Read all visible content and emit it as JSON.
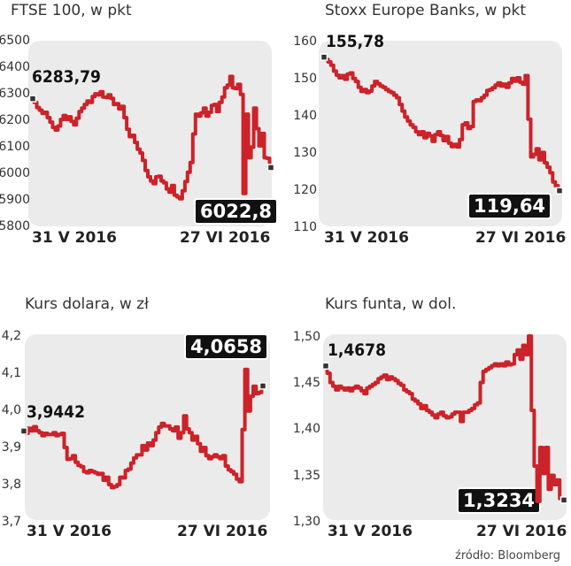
{
  "source": "źródło: Bloomberg",
  "colors": {
    "line": "#cc2229",
    "plot_bg": "#ebebeb",
    "label_bg": "#111111"
  },
  "chart_data": [
    {
      "type": "line",
      "title": "FTSE 100, w pkt",
      "x_start_label": "31 V 2016",
      "x_end_label": "27 VI 2016",
      "ylim": [
        5800,
        6500
      ],
      "yticks": [
        "6500",
        "6400",
        "6300",
        "6200",
        "6100",
        "6000",
        "5900",
        "5800"
      ],
      "start_value_label": "6283,79",
      "end_value_label": "6022,8",
      "series": [
        {
          "values": [
            6283.79,
            6270,
            6250,
            6240,
            6228,
            6232,
            6212,
            6195,
            6175,
            6165,
            6180,
            6205,
            6220,
            6205,
            6215,
            6198,
            6185,
            6210,
            6235,
            6248,
            6262,
            6275,
            6270,
            6292,
            6302,
            6298,
            6310,
            6290,
            6288,
            6298,
            6285,
            6262,
            6265,
            6245,
            6255,
            6212,
            6168,
            6140,
            6145,
            6118,
            6092,
            6078,
            6050,
            6012,
            5988,
            5972,
            5962,
            5988,
            5990,
            5972,
            5965,
            5942,
            5930,
            5955,
            5918,
            5912,
            5905,
            5935,
            5970,
            6005,
            6042,
            6150,
            6225,
            6218,
            6230,
            6248,
            6218,
            6232,
            6258,
            6262,
            6235,
            6270,
            6290,
            6325,
            6335,
            6368,
            6325,
            6322,
            6338,
            6300,
            5925,
            6225,
            6060,
            6100,
            6248,
            6170,
            6105,
            6152,
            6060,
            6058,
            6022.8
          ]
        }
      ]
    },
    {
      "type": "line",
      "title": "Stoxx Europe Banks, w pkt",
      "x_start_label": "31 V 2016",
      "x_end_label": "27 VI 2016",
      "ylim": [
        110,
        160
      ],
      "yticks": [
        "160",
        "150",
        "140",
        "130",
        "120",
        "110"
      ],
      "start_value_label": "155,78",
      "end_value_label": "119,64",
      "series": [
        {
          "values": [
            155.78,
            155.2,
            154.5,
            153.6,
            152.0,
            150.9,
            150.2,
            150.8,
            149.8,
            151.2,
            151.5,
            150.0,
            149.2,
            147.6,
            146.5,
            147.0,
            146.2,
            146.6,
            148.0,
            149.2,
            148.6,
            148.0,
            147.6,
            147.0,
            146.5,
            146.2,
            145.5,
            144.8,
            143.0,
            141.2,
            139.6,
            138.5,
            137.5,
            136.8,
            135.6,
            134.8,
            135.6,
            134.0,
            135.2,
            134.5,
            133.0,
            134.8,
            135.6,
            134.6,
            133.2,
            134.3,
            132.5,
            131.6,
            132.2,
            131.5,
            133.5,
            137.5,
            138.0,
            136.5,
            137.0,
            143.8,
            144.2,
            144.0,
            144.8,
            145.5,
            146.8,
            147.0,
            147.5,
            148.2,
            148.8,
            148.0,
            148.5,
            147.6,
            148.8,
            150.0,
            149.3,
            150.2,
            149.0,
            148.5,
            150.8,
            139.0,
            128.8,
            129.5,
            131.0,
            128.0,
            130.0,
            127.2,
            126.0,
            124.5,
            122.0,
            121.0,
            119.64
          ]
        }
      ]
    },
    {
      "type": "line",
      "title": "Kurs dolara, w zł",
      "x_start_label": "31 V 2016",
      "x_end_label": "27 VI 2016",
      "ylim": [
        3.7,
        4.2
      ],
      "yticks": [
        "4,2",
        "4,1",
        "4,0",
        "3,9",
        "3,8",
        "3,7"
      ],
      "start_value_label": "3,9442",
      "end_value_label": "4,0658",
      "series": [
        {
          "values": [
            3.9442,
            3.938,
            3.952,
            3.945,
            3.956,
            3.945,
            3.94,
            3.932,
            3.938,
            3.935,
            3.935,
            3.94,
            3.932,
            3.935,
            3.938,
            3.9,
            3.868,
            3.87,
            3.878,
            3.86,
            3.852,
            3.848,
            3.835,
            3.832,
            3.838,
            3.835,
            3.832,
            3.828,
            3.83,
            3.812,
            3.82,
            3.8,
            3.792,
            3.795,
            3.8,
            3.82,
            3.818,
            3.838,
            3.842,
            3.858,
            3.872,
            3.88,
            3.88,
            3.905,
            3.893,
            3.912,
            3.905,
            3.92,
            3.94,
            3.955,
            3.965,
            3.958,
            3.958,
            3.95,
            3.945,
            3.955,
            3.925,
            3.94,
            3.985,
            3.95,
            3.94,
            3.92,
            3.93,
            3.91,
            3.89,
            3.9,
            3.878,
            3.87,
            3.875,
            3.88,
            3.875,
            3.87,
            3.878,
            3.85,
            3.84,
            3.835,
            3.828,
            3.815,
            3.808,
            3.948,
            4.11,
            3.998,
            4.038,
            4.065,
            4.045,
            4.048,
            4.0658
          ]
        }
      ]
    },
    {
      "type": "line",
      "title": "Kurs funta, w dol.",
      "x_start_label": "31 V 2016",
      "x_end_label": "27 VI 2016",
      "ylim": [
        1.3,
        1.5
      ],
      "yticks": [
        "1,50",
        "1,45",
        "1,40",
        "1,35",
        "1,30"
      ],
      "start_value_label": "1,4678",
      "end_value_label": "1,3234",
      "series": [
        {
          "values": [
            1.4678,
            1.46,
            1.45,
            1.446,
            1.442,
            1.446,
            1.444,
            1.442,
            1.444,
            1.441,
            1.444,
            1.446,
            1.444,
            1.441,
            1.438,
            1.444,
            1.446,
            1.448,
            1.45,
            1.454,
            1.456,
            1.458,
            1.453,
            1.456,
            1.454,
            1.452,
            1.449,
            1.447,
            1.442,
            1.44,
            1.438,
            1.432,
            1.43,
            1.427,
            1.422,
            1.425,
            1.42,
            1.418,
            1.415,
            1.412,
            1.416,
            1.418,
            1.414,
            1.412,
            1.413,
            1.416,
            1.418,
            1.418,
            1.408,
            1.418,
            1.418,
            1.42,
            1.422,
            1.426,
            1.428,
            1.45,
            1.462,
            1.464,
            1.466,
            1.468,
            1.47,
            1.468,
            1.47,
            1.468,
            1.472,
            1.469,
            1.47,
            1.48,
            1.485,
            1.475,
            1.49,
            1.48,
            1.5,
            1.42,
            1.36,
            1.322,
            1.38,
            1.352,
            1.38,
            1.335,
            1.35,
            1.34,
            1.345,
            1.325,
            1.3234
          ]
        }
      ]
    }
  ]
}
